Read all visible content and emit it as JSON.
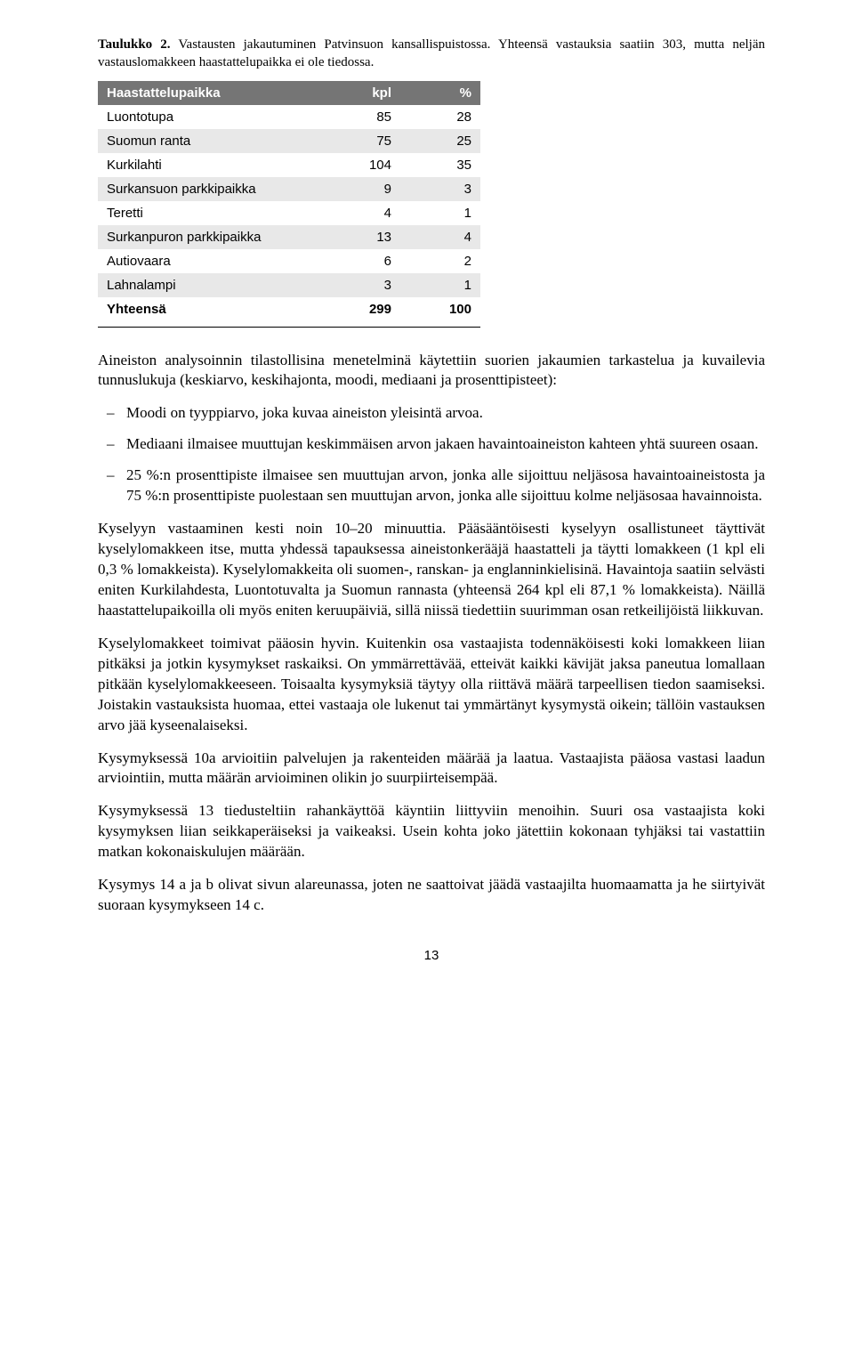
{
  "caption": {
    "label": "Taulukko 2.",
    "text": " Vastausten jakautuminen Patvinsuon kansallispuistossa. Yhteensä vastauksia saatiin 303, mutta neljän vastauslomakkeen haastattelupaikka ei ole tiedossa."
  },
  "table": {
    "headers": {
      "c0": "Haastattelupaikka",
      "c1": "kpl",
      "c2": "%"
    },
    "header_bg": "#757575",
    "shade_bg": "#e8e8e8",
    "rows": [
      {
        "c0": "Luontotupa",
        "c1": "85",
        "c2": "28",
        "shade": false
      },
      {
        "c0": "Suomun ranta",
        "c1": "75",
        "c2": "25",
        "shade": true
      },
      {
        "c0": "Kurkilahti",
        "c1": "104",
        "c2": "35",
        "shade": false
      },
      {
        "c0": "Surkansuon parkkipaikka",
        "c1": "9",
        "c2": "3",
        "shade": true
      },
      {
        "c0": "Teretti",
        "c1": "4",
        "c2": "1",
        "shade": false
      },
      {
        "c0": "Surkanpuron parkkipaikka",
        "c1": "13",
        "c2": "4",
        "shade": true
      },
      {
        "c0": "Autiovaara",
        "c1": "6",
        "c2": "2",
        "shade": false
      },
      {
        "c0": "Lahnalampi",
        "c1": "3",
        "c2": "1",
        "shade": true
      }
    ],
    "total": {
      "c0": "Yhteensä",
      "c1": "299",
      "c2": "100"
    }
  },
  "intro": "Aineiston analysoinnin tilastollisina menetelminä käytettiin suorien jakaumien tarkastelua ja kuvailevia tunnuslukuja (keskiarvo, keskihajonta, moodi, mediaani ja prosenttipisteet):",
  "bullets": {
    "b0": "Moodi on tyyppiarvo, joka kuvaa aineiston yleisintä arvoa.",
    "b1": "Mediaani ilmaisee muuttujan keskimmäisen arvon jakaen havaintoaineiston kahteen yhtä suureen osaan.",
    "b2": "25 %:n prosenttipiste ilmaisee sen muuttujan arvon, jonka alle sijoittuu neljäsosa havaintoaineistosta ja 75 %:n prosenttipiste puolestaan sen muuttujan arvon, jonka alle sijoittuu kolme neljäsosaa havainnoista."
  },
  "paragraphs": {
    "p1": "Kyselyyn vastaaminen kesti noin 10–20 minuuttia. Pääsääntöisesti kyselyyn osallistuneet täyttivät kyselylomakkeen itse, mutta yhdessä tapauksessa aineistonkerääjä haastatteli ja täytti lomakkeen (1 kpl eli 0,3 % lomakkeista). Kyselylomakkeita oli suomen-, ranskan- ja englanninkielisinä. Havaintoja saatiin selvästi eniten Kurkilahdesta, Luontotuvalta ja Suomun rannasta (yhteensä 264 kpl eli 87,1 % lomakkeista). Näillä haastattelupaikoilla oli myös eniten keruupäiviä, sillä niissä tiedettiin suurimman osan retkeilijöistä liikkuvan.",
    "p2": "Kyselylomakkeet toimivat pääosin hyvin. Kuitenkin osa vastaajista todennäköisesti koki lomakkeen liian pitkäksi ja jotkin kysymykset raskaiksi. On ymmärrettävää, etteivät kaikki kävijät jaksa paneutua lomallaan pitkään kyselylomakkeeseen. Toisaalta kysymyksiä täytyy olla riittävä määrä tarpeellisen tiedon saamiseksi. Joistakin vastauksista huomaa, ettei vastaaja ole lukenut tai ymmärtänyt kysymystä oikein; tällöin vastauksen arvo jää kyseenalaiseksi.",
    "p3": "Kysymyksessä 10a arvioitiin palvelujen ja rakenteiden määrää ja laatua. Vastaajista pääosa vastasi laadun arviointiin, mutta määrän arvioiminen olikin jo suurpiirteisempää.",
    "p4": "Kysymyksessä 13 tiedusteltiin rahankäyttöä käyntiin liittyviin menoihin. Suuri osa vastaajista koki kysymyksen liian seikkaperäiseksi ja vaikeaksi. Usein kohta joko jätettiin kokonaan tyhjäksi tai vastattiin matkan kokonaiskulujen määrään.",
    "p5": "Kysymys 14 a ja b olivat sivun alareunassa, joten ne saattoivat jäädä vastaajilta huomaamatta ja he siirtyivät suoraan kysymykseen 14 c."
  },
  "pagenum": "13"
}
